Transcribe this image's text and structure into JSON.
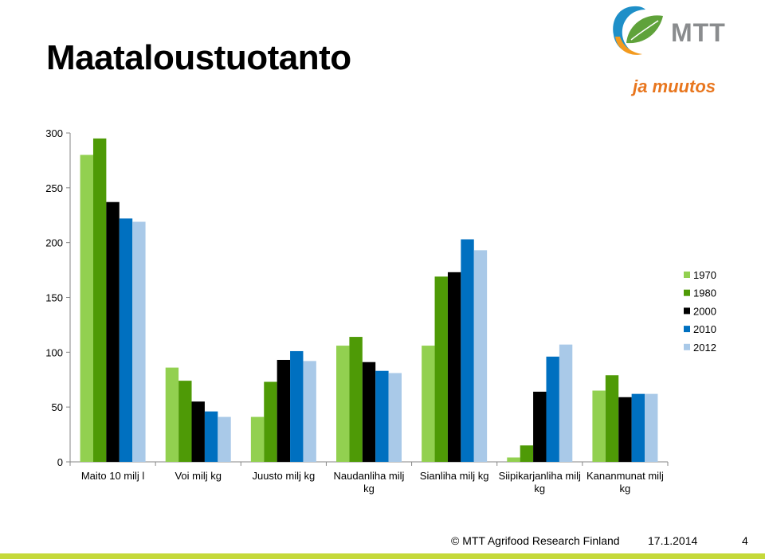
{
  "slide": {
    "title": "Maataloustuotanto",
    "tagline": "ja muutos",
    "logo_text": "MTT",
    "footer_copyright": "© MTT Agrifood Research Finland",
    "footer_date": "17.1.2014",
    "page_number": "4"
  },
  "colors": {
    "tagline": "#E8761E",
    "logo_text": "#8A8C8E",
    "logo_green": "#5FA23A",
    "logo_blue": "#1E8FC8",
    "logo_orange": "#F39A1E",
    "footer_bar": "#C5D93A",
    "axis": "#868686"
  },
  "chart_data": {
    "type": "bar",
    "title": "",
    "xlabel": "",
    "ylabel": "",
    "ylim": [
      0,
      300
    ],
    "yticks": [
      0,
      50,
      100,
      150,
      200,
      250,
      300
    ],
    "grid": false,
    "legend_position": "right",
    "categories": [
      [
        "Maito 10 milj l"
      ],
      [
        "Voi milj kg"
      ],
      [
        "Juusto milj kg"
      ],
      [
        "Naudanliha milj",
        "kg"
      ],
      [
        "Sianliha milj kg"
      ],
      [
        "Siipikarjanliha milj",
        "kg"
      ],
      [
        "Kananmunat milj",
        "kg"
      ]
    ],
    "series": [
      {
        "name": "1970",
        "color": "#92D050",
        "values": [
          280,
          86,
          41,
          106,
          106,
          4,
          65
        ]
      },
      {
        "name": "1980",
        "color": "#4E9A06",
        "values": [
          295,
          74,
          73,
          114,
          169,
          15,
          79
        ]
      },
      {
        "name": "2000",
        "color": "#000000",
        "values": [
          237,
          55,
          93,
          91,
          173,
          64,
          59
        ]
      },
      {
        "name": "2010",
        "color": "#0070C0",
        "values": [
          222,
          46,
          101,
          83,
          203,
          96,
          62
        ]
      },
      {
        "name": "2012",
        "color": "#A9C9E8",
        "values": [
          219,
          41,
          92,
          81,
          193,
          107,
          62
        ]
      }
    ]
  }
}
